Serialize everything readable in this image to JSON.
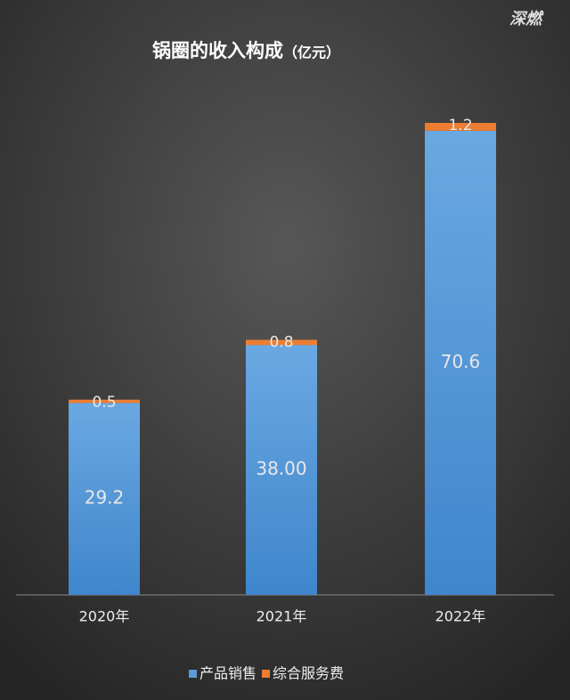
{
  "chart_data": {
    "type": "stacked_bar",
    "title": "锅圈的收入构成",
    "unit": "（亿元）",
    "watermark": "深燃",
    "categories": [
      "2020年",
      "2021年",
      "2022年"
    ],
    "series": [
      {
        "name": "产品销售",
        "color": "#5b9bd5",
        "values": [
          29.2,
          38.0,
          70.6
        ],
        "value_labels": [
          "29.2",
          "38.00",
          "70.6"
        ]
      },
      {
        "name": "综合服务费",
        "color": "#ed7d31",
        "values": [
          0.5,
          0.8,
          1.2
        ]
      }
    ],
    "legend": "bottom"
  }
}
